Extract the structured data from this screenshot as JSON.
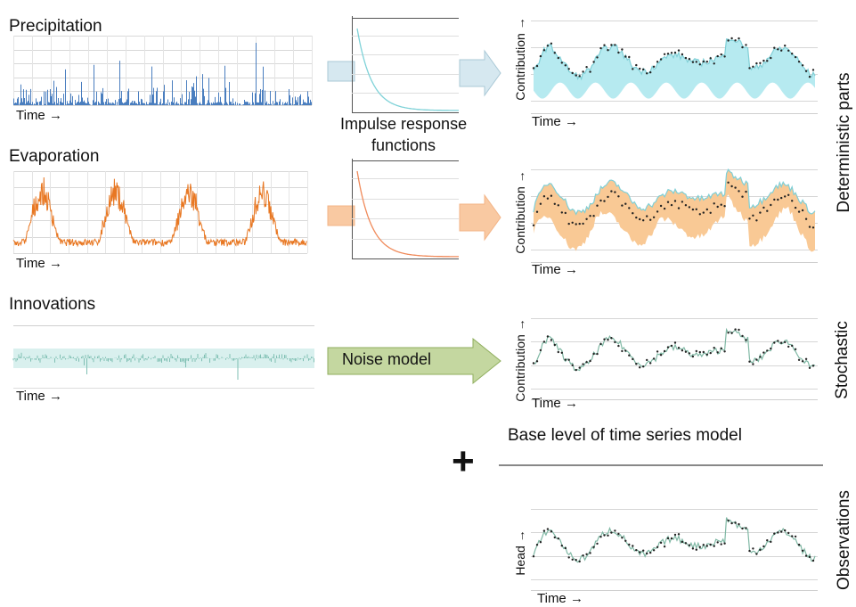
{
  "inputs": {
    "precipitation": "Precipitation",
    "evaporation": "Evaporation",
    "innovations": "Innovations"
  },
  "axes": {
    "time": "Time →",
    "contribution": "Contribution →",
    "head": "Head →"
  },
  "irf": {
    "label_line1": "Impulse response",
    "label_line2": "functions"
  },
  "noise_model": "Noise model",
  "base_level": "Base level of time series model",
  "plus": "+",
  "side_labels": {
    "deterministic": "Deterministic parts",
    "stochastic": "Stochastic",
    "observations": "Observations"
  },
  "colors": {
    "precipitation": "#4a7ebf",
    "evaporation": "#e87722",
    "innovations": "#8fcfc8",
    "irf_precip": "#7fd2d8",
    "irf_evap": "#f08a5a",
    "arrow_blue": "#d6e8f0",
    "arrow_orange": "#f9c9a2",
    "arrow_green": "#c4d7a0",
    "fill_cyan": "#b6eaf0",
    "fill_orange": "#f9c995",
    "obs_line": "#7fb8a4"
  }
}
